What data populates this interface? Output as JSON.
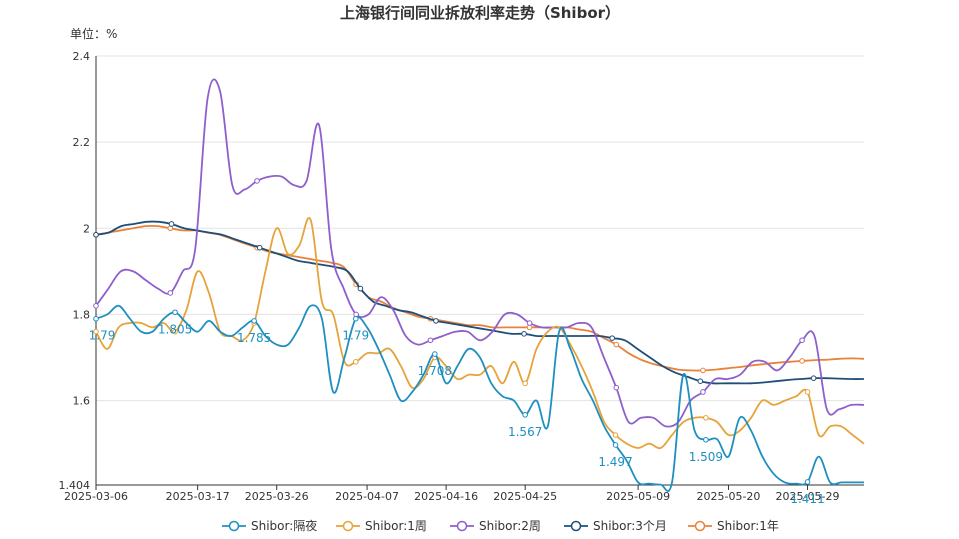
{
  "chart_data": {
    "type": "line",
    "title": "上海银行间同业拆放利率走势（Shibor）",
    "unit_label": "单位：%",
    "ylim": [
      1.404,
      2.4
    ],
    "y_ticks": [
      "1.404",
      "1.6",
      "1.8",
      "2",
      "2.2",
      "2.4"
    ],
    "y_tick_values": [
      1.404,
      1.6,
      1.8,
      2.0,
      2.2,
      2.4
    ],
    "x_tick_labels": [
      "2025-03-06",
      "2025-03-17",
      "2025-03-26",
      "2025-04-07",
      "2025-04-16",
      "2025-04-25",
      "2025-05-09",
      "2025-05-20",
      "2025-05-29"
    ],
    "x_tick_index": [
      0,
      9,
      16,
      24,
      31,
      38,
      48,
      56,
      63
    ],
    "grid": true,
    "legend_position": "bottom",
    "series": [
      {
        "name": "Shibor:隔夜",
        "color": "#1f8fc0",
        "values": [
          1.79,
          1.8,
          1.82,
          1.79,
          1.76,
          1.76,
          1.79,
          1.805,
          1.78,
          1.76,
          1.785,
          1.76,
          1.75,
          1.77,
          1.785,
          1.75,
          1.73,
          1.73,
          1.77,
          1.82,
          1.79,
          1.62,
          1.7,
          1.79,
          1.77,
          1.72,
          1.66,
          1.6,
          1.62,
          1.66,
          1.708,
          1.64,
          1.68,
          1.72,
          1.7,
          1.64,
          1.61,
          1.6,
          1.567,
          1.6,
          1.54,
          1.76,
          1.72,
          1.65,
          1.6,
          1.54,
          1.497,
          1.46,
          1.41,
          1.407,
          1.405,
          1.41,
          1.66,
          1.53,
          1.509,
          1.51,
          1.47,
          1.56,
          1.53,
          1.47,
          1.43,
          1.41,
          1.407,
          1.411,
          1.47,
          1.41,
          1.41,
          1.41,
          1.41
        ]
      },
      {
        "name": "Shibor:1周",
        "color": "#e6a33a",
        "values": [
          1.76,
          1.72,
          1.77,
          1.78,
          1.78,
          1.77,
          1.78,
          1.76,
          1.81,
          1.9,
          1.85,
          1.76,
          1.75,
          1.74,
          1.78,
          1.9,
          2.0,
          1.94,
          1.96,
          2.02,
          1.83,
          1.8,
          1.69,
          1.69,
          1.71,
          1.71,
          1.72,
          1.68,
          1.63,
          1.65,
          1.7,
          1.68,
          1.65,
          1.66,
          1.66,
          1.68,
          1.64,
          1.69,
          1.64,
          1.72,
          1.76,
          1.77,
          1.73,
          1.68,
          1.62,
          1.55,
          1.52,
          1.5,
          1.49,
          1.5,
          1.49,
          1.52,
          1.55,
          1.56,
          1.56,
          1.55,
          1.52,
          1.53,
          1.56,
          1.6,
          1.59,
          1.6,
          1.61,
          1.62,
          1.52,
          1.54,
          1.54,
          1.52,
          1.5
        ]
      },
      {
        "name": "Shibor:2周",
        "color": "#8e5fcc",
        "values": [
          1.82,
          1.86,
          1.9,
          1.9,
          1.88,
          1.86,
          1.85,
          1.9,
          1.95,
          2.3,
          2.32,
          2.1,
          2.09,
          2.11,
          2.12,
          2.12,
          2.1,
          2.11,
          2.24,
          1.95,
          1.86,
          1.8,
          1.8,
          1.84,
          1.81,
          1.75,
          1.73,
          1.74,
          1.75,
          1.76,
          1.76,
          1.74,
          1.76,
          1.8,
          1.8,
          1.78,
          1.77,
          1.77,
          1.77,
          1.78,
          1.77,
          1.7,
          1.63,
          1.55,
          1.56,
          1.56,
          1.54,
          1.55,
          1.6,
          1.62,
          1.65,
          1.65,
          1.66,
          1.69,
          1.69,
          1.67,
          1.7,
          1.74,
          1.75,
          1.58,
          1.58,
          1.59,
          1.59
        ]
      },
      {
        "name": "Shibor:3个月",
        "color": "#1f4e79",
        "values": [
          1.985,
          1.99,
          2.005,
          2.01,
          2.015,
          2.015,
          2.01,
          2.0,
          1.995,
          1.99,
          1.985,
          1.975,
          1.965,
          1.955,
          1.945,
          1.935,
          1.925,
          1.92,
          1.915,
          1.91,
          1.9,
          1.86,
          1.83,
          1.82,
          1.81,
          1.805,
          1.795,
          1.785,
          1.78,
          1.775,
          1.77,
          1.765,
          1.76,
          1.755,
          1.755,
          1.75,
          1.75,
          1.75,
          1.75,
          1.75,
          1.75,
          1.745,
          1.74,
          1.72,
          1.7,
          1.68,
          1.665,
          1.655,
          1.645,
          1.64,
          1.64,
          1.64,
          1.64,
          1.642,
          1.645,
          1.648,
          1.65,
          1.652,
          1.652,
          1.651,
          1.65,
          1.65
        ]
      },
      {
        "name": "Shibor:1年",
        "color": "#e8823a",
        "values": [
          1.985,
          1.99,
          1.995,
          2.0,
          2.005,
          2.005,
          2.0,
          1.995,
          1.995,
          1.99,
          1.985,
          1.975,
          1.965,
          1.955,
          1.945,
          1.94,
          1.935,
          1.93,
          1.925,
          1.92,
          1.91,
          1.87,
          1.84,
          1.83,
          1.815,
          1.805,
          1.795,
          1.79,
          1.785,
          1.78,
          1.775,
          1.775,
          1.77,
          1.77,
          1.77,
          1.77,
          1.77,
          1.77,
          1.77,
          1.765,
          1.76,
          1.745,
          1.73,
          1.71,
          1.695,
          1.685,
          1.678,
          1.672,
          1.67,
          1.67,
          1.672,
          1.675,
          1.678,
          1.682,
          1.685,
          1.688,
          1.69,
          1.692,
          1.694,
          1.695,
          1.697,
          1.698,
          1.697
        ]
      }
    ],
    "data_labels": [
      {
        "series": 0,
        "index": 0,
        "text": "1.79"
      },
      {
        "series": 0,
        "index": 7,
        "text": "1.805"
      },
      {
        "series": 0,
        "index": 14,
        "text": "1.785"
      },
      {
        "series": 0,
        "index": 23,
        "text": "1.79"
      },
      {
        "series": 0,
        "index": 30,
        "text": "1.708"
      },
      {
        "series": 0,
        "index": 38,
        "text": "1.567"
      },
      {
        "series": 0,
        "index": 46,
        "text": "1.497"
      },
      {
        "series": 0,
        "index": 54,
        "text": "1.509"
      },
      {
        "series": 0,
        "index": 63,
        "text": "1.411"
      }
    ],
    "marker_index": [
      0,
      7,
      14,
      23,
      30,
      38,
      46,
      54,
      63
    ]
  }
}
